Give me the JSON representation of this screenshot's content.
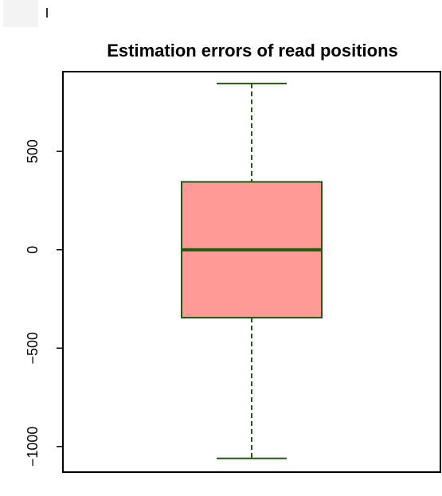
{
  "chart_data": {
    "type": "boxplot",
    "title": "Estimation errors of read positions",
    "xlabel": "",
    "ylabel": "",
    "ylim": [
      -1130,
      905
    ],
    "yticks": [
      -1000,
      -500,
      0,
      500
    ],
    "ytick_labels": [
      "−1000",
      "−500",
      "0",
      "500"
    ],
    "box": {
      "whisker_low": -1060,
      "q1": -345,
      "median": 0,
      "q3": 345,
      "whisker_high": 845
    },
    "colors": {
      "box_fill": "#ff9a96",
      "box_stroke": "#1f5a0e",
      "whisker": "#1f5a0e",
      "median": "#1f5a0e",
      "axis": "#000000"
    },
    "grid": false,
    "legend": "none"
  }
}
